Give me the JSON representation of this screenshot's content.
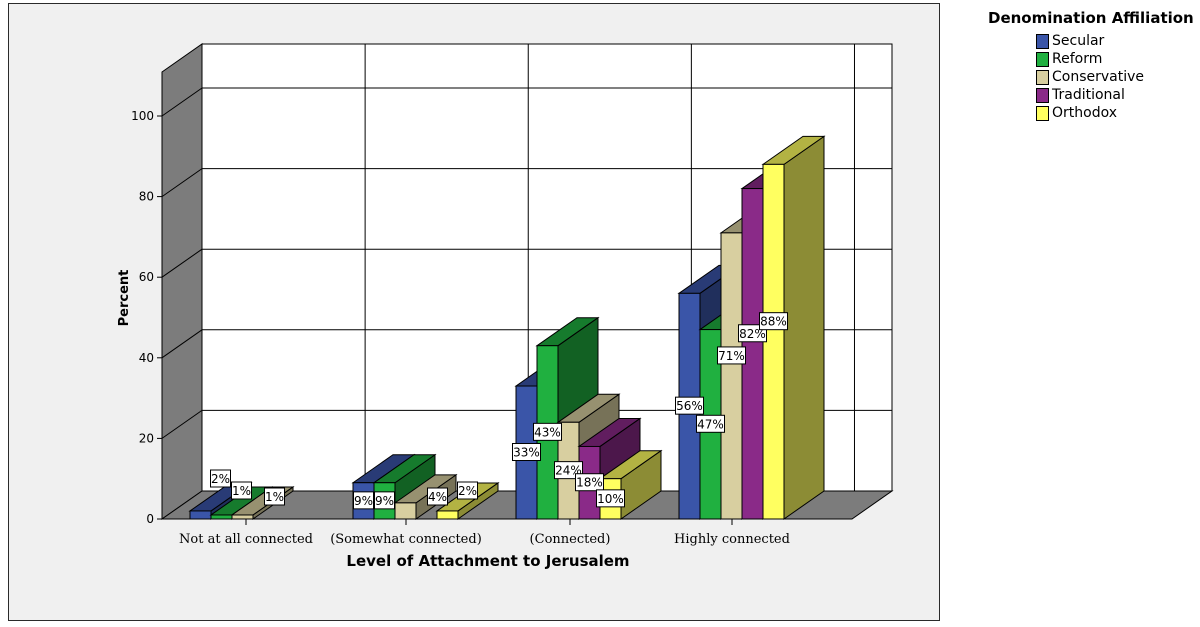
{
  "chart_data": {
    "type": "bar",
    "title": "",
    "xlabel": "Level of Attachment to Jerusalem",
    "ylabel": "Percent",
    "ylim": [
      0,
      110
    ],
    "yticks": [
      0,
      20,
      40,
      60,
      80,
      100
    ],
    "categories": [
      "Not at all connected",
      "(Somewhat connected)",
      "(Connected)",
      "Highly connected"
    ],
    "legend_title": "Denomination Affiliation",
    "legend_position": "top-right",
    "series": [
      {
        "name": "Secular",
        "color": "#3a55a8",
        "values": [
          2,
          9,
          33,
          56
        ],
        "labels": [
          "2%",
          "9%",
          "33%",
          "56%"
        ]
      },
      {
        "name": "Reform",
        "color": "#20b040",
        "values": [
          1,
          9,
          43,
          47
        ],
        "labels": [
          "1%",
          "9%",
          "43%",
          "47%"
        ]
      },
      {
        "name": "Conservative",
        "color": "#d8cfa0",
        "values": [
          1,
          4,
          24,
          71
        ],
        "labels": [
          "1%",
          "4%",
          "24%",
          "71%"
        ]
      },
      {
        "name": "Traditional",
        "color": "#8a2a88",
        "values": [
          0,
          0,
          18,
          82
        ],
        "labels": [
          "",
          "",
          "18%",
          "82%"
        ]
      },
      {
        "name": "Orthodox",
        "color": "#ffff60",
        "values": [
          0,
          2,
          10,
          88
        ],
        "labels": [
          "",
          "2%",
          "10%",
          "88%"
        ]
      }
    ]
  }
}
